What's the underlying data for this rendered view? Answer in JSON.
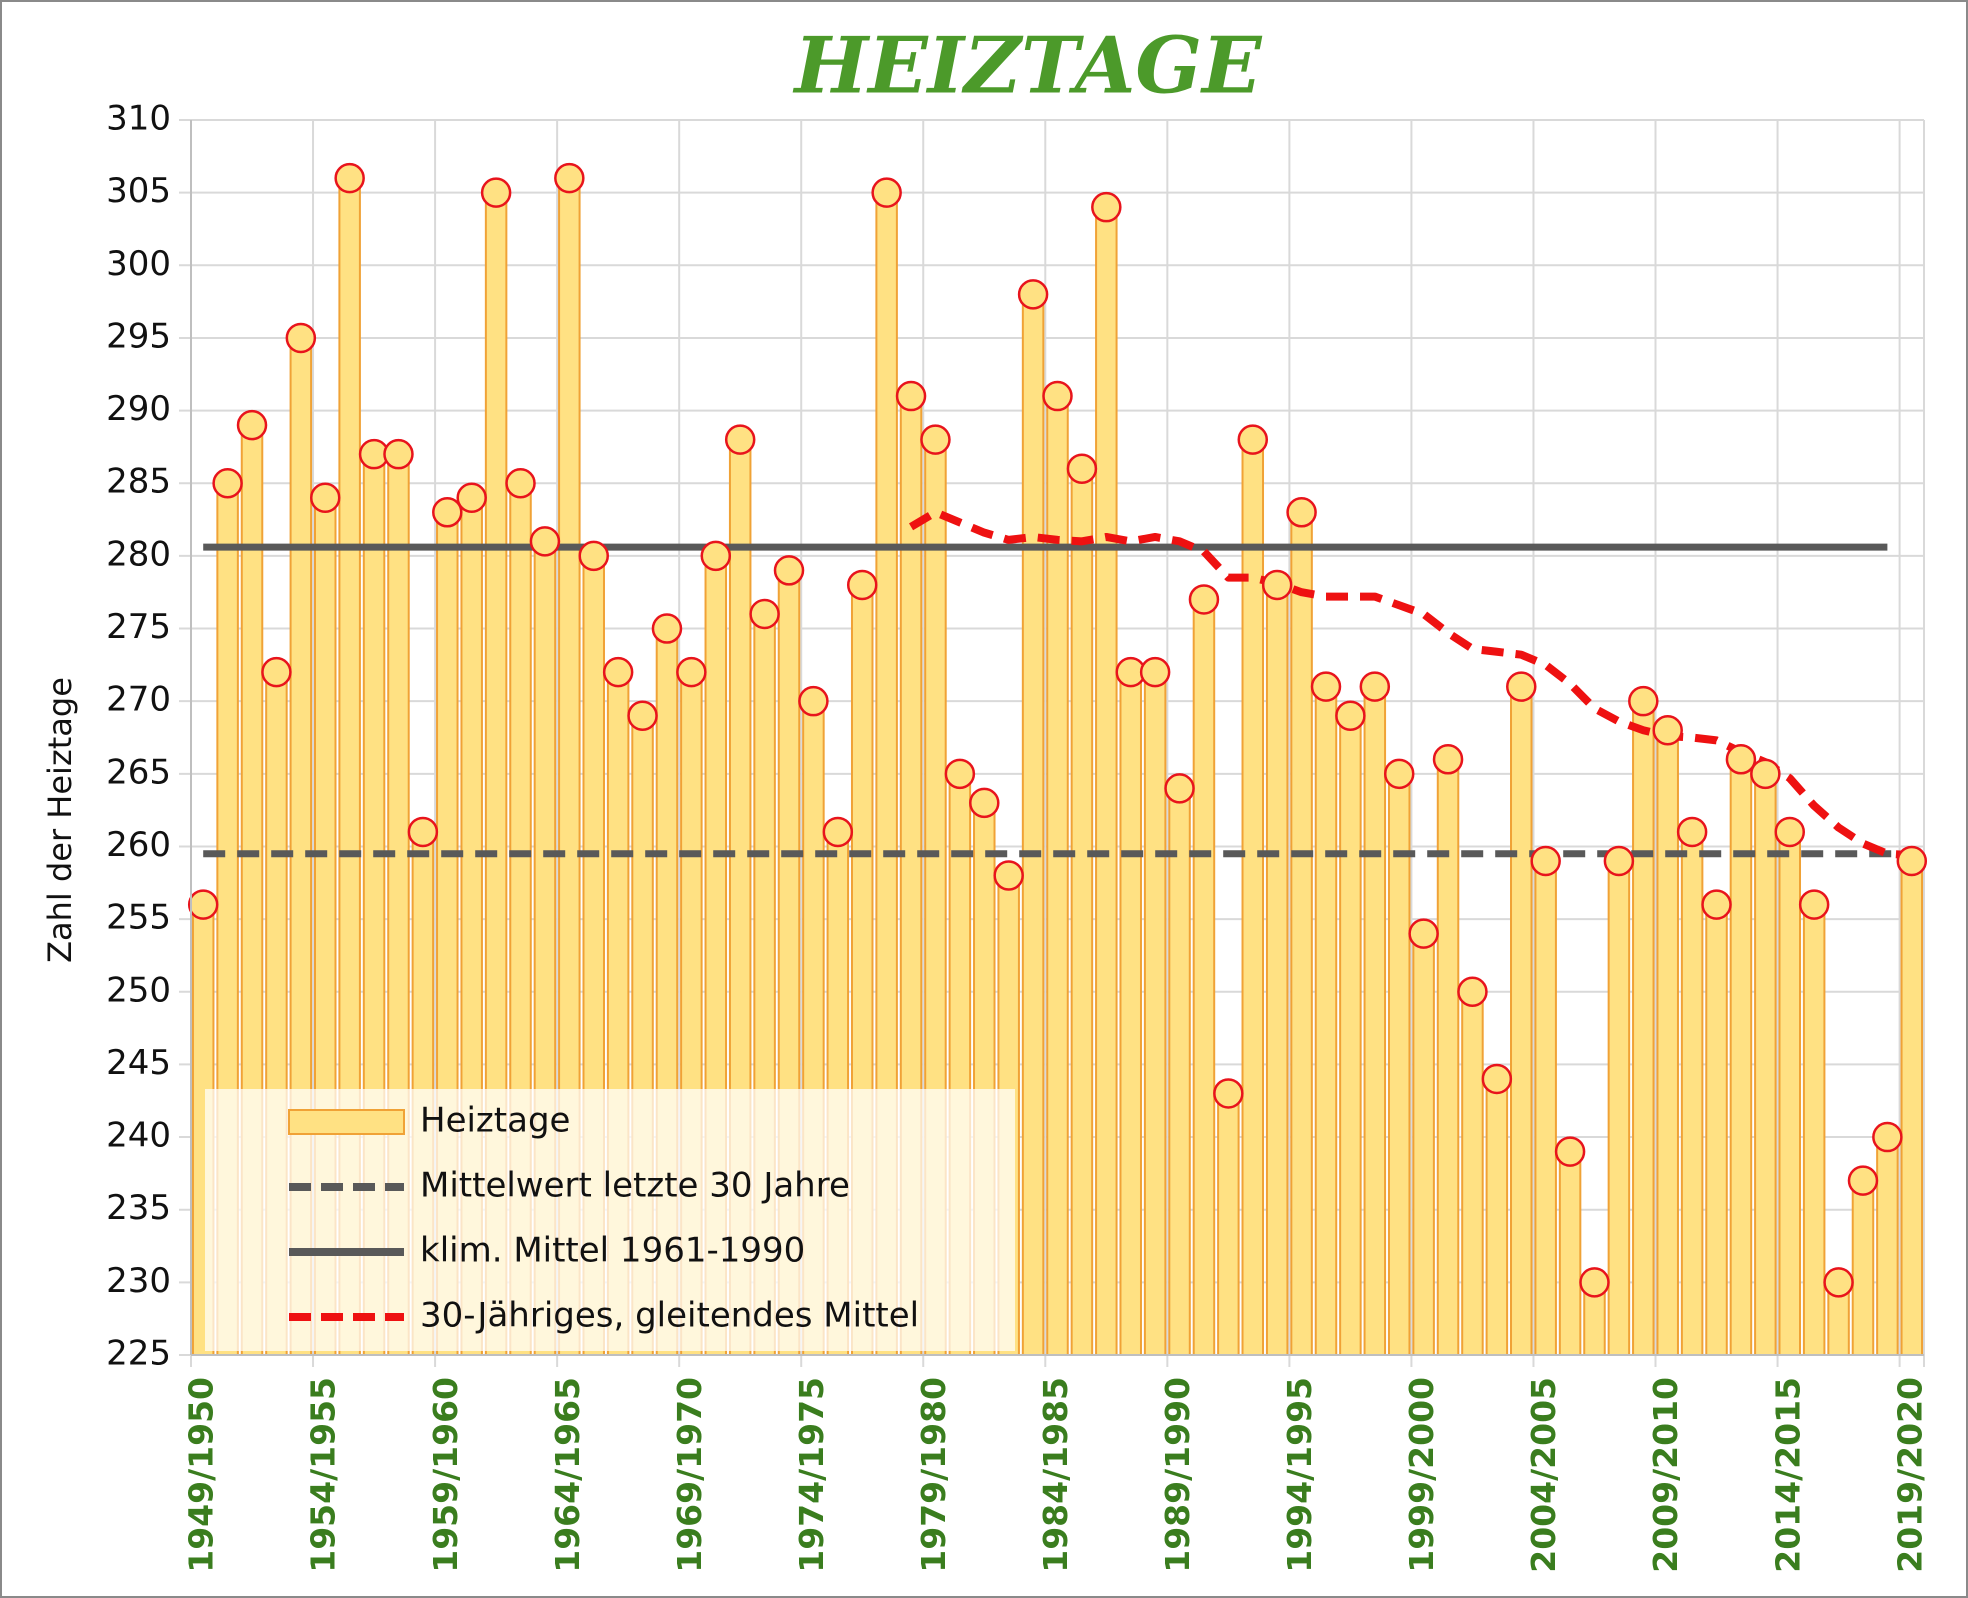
{
  "chart_data": {
    "type": "bar",
    "title": "HEIZTAGE",
    "y_label": "Zahl der Heiztage",
    "categories": [
      "1949/1950",
      null,
      null,
      null,
      null,
      "1954/1955",
      null,
      null,
      null,
      null,
      "1959/1960",
      null,
      null,
      null,
      null,
      "1964/1965",
      null,
      null,
      null,
      null,
      "1969/1970",
      null,
      null,
      null,
      null,
      "1974/1975",
      null,
      null,
      null,
      null,
      "1979/1980",
      null,
      null,
      null,
      null,
      "1984/1985",
      null,
      null,
      null,
      null,
      "1989/1990",
      null,
      null,
      null,
      null,
      "1994/1995",
      null,
      null,
      null,
      null,
      "1999/2000",
      null,
      null,
      null,
      null,
      "2004/2005",
      null,
      null,
      null,
      null,
      "2009/2010",
      null,
      null,
      null,
      null,
      "2014/2015",
      null,
      null,
      null,
      null,
      "2019/2020"
    ],
    "series": [
      {
        "name": "Heiztage",
        "color": "#ffe183",
        "edge_color": "#f0a236",
        "marker_color": "#e8141c",
        "values": [
          256,
          285,
          289,
          272,
          295,
          284,
          306,
          287,
          287,
          261,
          283,
          284,
          305,
          285,
          281,
          306,
          280,
          272,
          269,
          275,
          272,
          280,
          288,
          276,
          279,
          270,
          261,
          278,
          305,
          291,
          288,
          265,
          263,
          258,
          298,
          291,
          286,
          304,
          272,
          272,
          264,
          277,
          243,
          288,
          278,
          283,
          271,
          269,
          271,
          265,
          254,
          266,
          250,
          244,
          271,
          259,
          239,
          230,
          259,
          270,
          268,
          261,
          256,
          266,
          265,
          261,
          256,
          230,
          237,
          240,
          259
        ]
      },
      {
        "name": "Mittelwert letzte 30 Jahre",
        "color": "#595959",
        "dash": true,
        "value": 259.5
      },
      {
        "name": "klim. Mittel 1961-1990",
        "color": "#595959",
        "dash": false,
        "value": 280.6
      },
      {
        "name": "30-Jähriges, gleitendes Mittel",
        "color": "#ee1111",
        "dash": true,
        "values": [
          null,
          null,
          null,
          null,
          null,
          null,
          null,
          null,
          null,
          null,
          null,
          null,
          null,
          null,
          null,
          null,
          null,
          null,
          null,
          null,
          null,
          null,
          null,
          null,
          null,
          null,
          null,
          null,
          null,
          282.0,
          283.0,
          282.3,
          281.6,
          281.1,
          281.3,
          281.1,
          281.0,
          281.3,
          281.0,
          281.3,
          281.0,
          280.3,
          278.5,
          278.5,
          278.1,
          277.5,
          277.2,
          277.2,
          277.2,
          276.6,
          276.0,
          274.7,
          273.6,
          273.4,
          273.2,
          272.5,
          271.2,
          269.5,
          268.6,
          268.0,
          267.6,
          267.5,
          267.3,
          266.5,
          265.8,
          264.7,
          262.8,
          261.3,
          260.2,
          259.5,
          259.4
        ]
      }
    ],
    "ylim": [
      225,
      310
    ],
    "yticks": [
      225,
      230,
      235,
      240,
      245,
      250,
      255,
      260,
      265,
      270,
      275,
      280,
      285,
      290,
      295,
      300,
      305,
      310
    ],
    "grid": true,
    "legend": "lower left"
  }
}
